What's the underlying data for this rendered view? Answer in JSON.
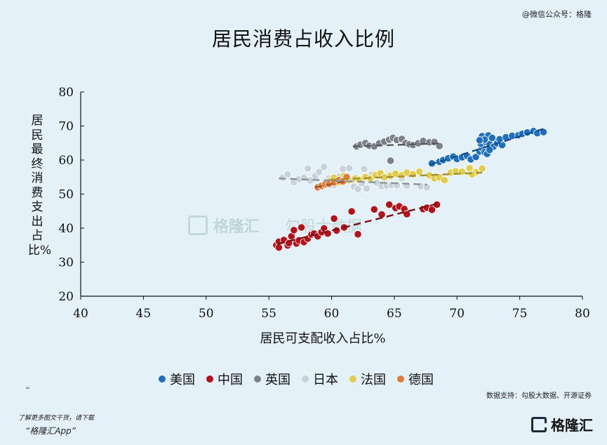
{
  "watermark_top": "@微信公众号：格隆",
  "footer": {
    "line1": "了解更多图文干货，请下载",
    "line2": "“格隆汇App”",
    "brand": "格隆汇",
    "source": "数据支持：勾股大数据、开源证券",
    "small_mark": "="
  },
  "watermark": {
    "logo_text": "格隆汇",
    "text2": "勾股大数据"
  },
  "chart_data": {
    "type": "scatter",
    "title": "居民消费占收入比例",
    "xlabel": "居民可支配收入占比%",
    "ylabel": "居民最终消费支出占比%",
    "xlim": [
      40,
      80
    ],
    "ylim": [
      20,
      80
    ],
    "x_ticks": [
      "40",
      "45",
      "50",
      "55",
      "60",
      "65",
      "70",
      "75",
      "80"
    ],
    "y_ticks": [
      "20",
      "30",
      "40",
      "50",
      "60",
      "70",
      "80"
    ],
    "grid": false,
    "legend_position": "bottom",
    "series": [
      {
        "name": "美国",
        "color": "#1f6fc0",
        "points": [
          [
            68.0,
            59.0
          ],
          [
            68.6,
            59.5
          ],
          [
            68.9,
            60.0
          ],
          [
            69.3,
            60.5
          ],
          [
            69.7,
            61.0
          ],
          [
            70.0,
            60.3
          ],
          [
            70.4,
            60.8
          ],
          [
            70.8,
            61.2
          ],
          [
            71.1,
            60.2
          ],
          [
            71.5,
            60.9
          ],
          [
            71.8,
            62.5
          ],
          [
            72.0,
            63.5
          ],
          [
            72.2,
            62.3
          ],
          [
            72.4,
            61.8
          ],
          [
            71.9,
            64.8
          ],
          [
            72.3,
            65.3
          ],
          [
            72.6,
            64.6
          ],
          [
            72.9,
            63.9
          ],
          [
            73.2,
            64.9
          ],
          [
            73.6,
            64.4
          ],
          [
            72.0,
            67.0
          ],
          [
            72.5,
            67.2
          ],
          [
            72.8,
            66.5
          ],
          [
            73.4,
            66.1
          ],
          [
            73.9,
            66.7
          ],
          [
            74.4,
            67.1
          ],
          [
            74.9,
            67.3
          ],
          [
            75.2,
            67.7
          ],
          [
            75.6,
            68.1
          ],
          [
            76.1,
            68.5
          ],
          [
            76.4,
            67.9
          ],
          [
            76.9,
            68.2
          ],
          [
            72.2,
            66.0
          ],
          [
            71.8,
            65.8
          ],
          [
            72.6,
            63.0
          ]
        ],
        "trend": [
          [
            67.8,
            58.6
          ],
          [
            77.0,
            69.3
          ]
        ]
      },
      {
        "name": "中国",
        "color": "#b3121b",
        "points": [
          [
            55.6,
            35.0
          ],
          [
            55.8,
            36.0
          ],
          [
            55.8,
            34.3
          ],
          [
            56.2,
            36.5
          ],
          [
            56.5,
            34.9
          ],
          [
            56.6,
            35.6
          ],
          [
            56.8,
            37.6
          ],
          [
            57.0,
            39.4
          ],
          [
            57.2,
            35.5
          ],
          [
            57.4,
            36.4
          ],
          [
            57.6,
            40.2
          ],
          [
            57.8,
            35.9
          ],
          [
            58.1,
            36.9
          ],
          [
            58.4,
            38.1
          ],
          [
            58.6,
            38.4
          ],
          [
            58.9,
            37.6
          ],
          [
            59.2,
            38.8
          ],
          [
            59.4,
            39.9
          ],
          [
            59.7,
            38.4
          ],
          [
            60.2,
            42.8
          ],
          [
            60.4,
            39.3
          ],
          [
            61.0,
            40.2
          ],
          [
            61.6,
            44.9
          ],
          [
            62.1,
            38.2
          ],
          [
            63.4,
            45.5
          ],
          [
            64.0,
            44.0
          ],
          [
            64.6,
            46.9
          ],
          [
            65.1,
            45.9
          ],
          [
            65.4,
            46.4
          ],
          [
            65.8,
            45.6
          ],
          [
            66.0,
            44.1
          ],
          [
            67.3,
            45.6
          ],
          [
            67.6,
            46.0
          ],
          [
            68.0,
            45.4
          ],
          [
            68.4,
            46.9
          ]
        ],
        "trend": [
          [
            55.7,
            35.3
          ],
          [
            68.5,
            47.2
          ]
        ]
      },
      {
        "name": "英国",
        "color": "#7b8189",
        "points": [
          [
            62.0,
            64.0
          ],
          [
            62.3,
            64.5
          ],
          [
            62.7,
            65.0
          ],
          [
            63.0,
            64.2
          ],
          [
            63.4,
            64.0
          ],
          [
            63.8,
            64.9
          ],
          [
            64.2,
            65.4
          ],
          [
            64.6,
            66.0
          ],
          [
            64.9,
            66.5
          ],
          [
            65.2,
            65.9
          ],
          [
            65.6,
            66.2
          ],
          [
            65.9,
            65.0
          ],
          [
            66.2,
            64.6
          ],
          [
            66.5,
            64.4
          ],
          [
            66.9,
            64.9
          ],
          [
            67.3,
            65.6
          ],
          [
            67.8,
            65.2
          ],
          [
            68.2,
            65.3
          ],
          [
            68.6,
            64.1
          ],
          [
            64.7,
            59.8
          ]
        ],
        "trend": [
          [
            61.7,
            64.0
          ],
          [
            68.7,
            64.9
          ]
        ]
      },
      {
        "name": "日本",
        "color": "#c7d2da",
        "points": [
          [
            56.1,
            54.8
          ],
          [
            56.5,
            55.8
          ],
          [
            57.0,
            53.5
          ],
          [
            57.4,
            54.4
          ],
          [
            57.8,
            54.8
          ],
          [
            58.1,
            57.5
          ],
          [
            58.3,
            54.0
          ],
          [
            58.7,
            55.3
          ],
          [
            59.0,
            56.5
          ],
          [
            59.4,
            58.0
          ],
          [
            59.8,
            54.6
          ],
          [
            60.2,
            52.6
          ],
          [
            60.6,
            55.1
          ],
          [
            60.9,
            57.4
          ],
          [
            61.1,
            53.8
          ],
          [
            61.4,
            57.6
          ],
          [
            61.8,
            52.2
          ],
          [
            62.1,
            51.5
          ],
          [
            62.4,
            53.2
          ],
          [
            62.8,
            51.6
          ],
          [
            63.2,
            55.7
          ],
          [
            63.6,
            53.3
          ],
          [
            64.0,
            52.3
          ],
          [
            64.4,
            52.5
          ],
          [
            64.8,
            52.7
          ],
          [
            65.2,
            52.6
          ],
          [
            65.6,
            54.7
          ],
          [
            66.0,
            52.5
          ],
          [
            67.1,
            52.3
          ],
          [
            67.6,
            52.0
          ],
          [
            62.6,
            57.4
          ]
        ],
        "trend": [
          [
            55.8,
            54.6
          ],
          [
            67.6,
            52.8
          ]
        ]
      },
      {
        "name": "法国",
        "color": "#e2cc4c",
        "points": [
          [
            59.9,
            53.9
          ],
          [
            60.2,
            54.8
          ],
          [
            60.6,
            53.4
          ],
          [
            61.0,
            55.3
          ],
          [
            61.4,
            54.1
          ],
          [
            61.9,
            54.6
          ],
          [
            62.2,
            54.2
          ],
          [
            62.7,
            55.0
          ],
          [
            63.1,
            54.5
          ],
          [
            63.5,
            55.6
          ],
          [
            63.9,
            56.1
          ],
          [
            64.2,
            54.9
          ],
          [
            64.7,
            55.4
          ],
          [
            65.1,
            56.0
          ],
          [
            65.6,
            55.5
          ],
          [
            66.0,
            56.3
          ],
          [
            66.5,
            55.8
          ],
          [
            67.0,
            56.6
          ],
          [
            67.8,
            55.5
          ],
          [
            68.2,
            54.6
          ],
          [
            68.6,
            54.9
          ],
          [
            69.0,
            54.1
          ],
          [
            69.5,
            56.3
          ],
          [
            69.9,
            56.7
          ],
          [
            70.4,
            56.6
          ],
          [
            71.0,
            57.6
          ],
          [
            71.5,
            56.4
          ],
          [
            72.0,
            57.5
          ],
          [
            71.2,
            55.8
          ]
        ],
        "trend": [
          [
            59.9,
            54.2
          ],
          [
            72.0,
            56.3
          ]
        ]
      },
      {
        "name": "德国",
        "color": "#e07b3b",
        "points": [
          [
            58.9,
            52.0
          ],
          [
            59.2,
            52.4
          ],
          [
            59.5,
            52.9
          ],
          [
            59.8,
            53.0
          ],
          [
            60.2,
            53.4
          ],
          [
            60.6,
            54.1
          ],
          [
            60.9,
            53.7
          ],
          [
            61.2,
            55.0
          ]
        ],
        "trend": [
          [
            58.7,
            52.0
          ],
          [
            61.2,
            53.8
          ]
        ]
      }
    ]
  }
}
